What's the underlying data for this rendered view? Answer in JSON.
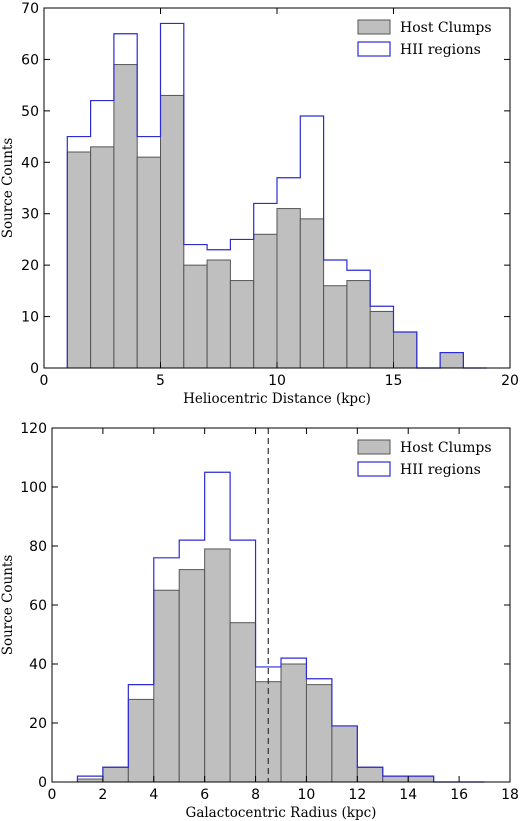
{
  "chart_data": [
    {
      "type": "bar",
      "subtype": "histogram",
      "xlabel": "Heliocentric Distance (kpc)",
      "ylabel": "Source Counts",
      "xlim": [
        0,
        20
      ],
      "ylim": [
        0,
        70
      ],
      "xticks": [
        "0",
        "5",
        "10",
        "15",
        "20"
      ],
      "yticks": [
        "0",
        "10",
        "20",
        "30",
        "40",
        "50",
        "60",
        "70"
      ],
      "bin_edges": [
        1,
        2,
        3,
        4,
        5,
        6,
        7,
        8,
        9,
        10,
        11,
        12,
        13,
        14,
        15,
        16,
        17,
        18,
        19
      ],
      "legend_position": "top-right",
      "series": [
        {
          "name": "Host Clumps",
          "style": "filled",
          "color": "#bfbfbf",
          "edge_color": "#555555",
          "values": [
            42,
            43,
            59,
            41,
            53,
            20,
            21,
            17,
            26,
            31,
            29,
            16,
            17,
            11,
            7,
            0,
            3,
            0
          ]
        },
        {
          "name": "HII regions",
          "style": "step",
          "color": "#2b2bd6",
          "values": [
            45,
            52,
            65,
            45,
            67,
            24,
            23,
            25,
            32,
            37,
            49,
            21,
            19,
            12,
            7,
            0,
            3,
            0
          ]
        }
      ]
    },
    {
      "type": "bar",
      "subtype": "histogram",
      "xlabel": "Galactocentric Radius (kpc)",
      "ylabel": "Source Counts",
      "xlim": [
        0,
        18
      ],
      "ylim": [
        0,
        120
      ],
      "xticks": [
        "0",
        "2",
        "4",
        "6",
        "8",
        "10",
        "12",
        "14",
        "16",
        "18"
      ],
      "yticks": [
        "0",
        "20",
        "40",
        "60",
        "80",
        "100",
        "120"
      ],
      "bin_edges": [
        1,
        2,
        3,
        4,
        5,
        6,
        7,
        8,
        9,
        10,
        11,
        12,
        13,
        14,
        15,
        16,
        17
      ],
      "vline": {
        "x": 8.5,
        "style": "dashed",
        "color": "#333333"
      },
      "legend_position": "top-right",
      "series": [
        {
          "name": "Host Clumps",
          "style": "filled",
          "color": "#bfbfbf",
          "edge_color": "#555555",
          "values": [
            1,
            5,
            28,
            65,
            72,
            79,
            54,
            34,
            40,
            33,
            19,
            5,
            2,
            2,
            0,
            0
          ]
        },
        {
          "name": "HII regions",
          "style": "step",
          "color": "#2b2bd6",
          "values": [
            2,
            5,
            33,
            76,
            82,
            105,
            82,
            39,
            42,
            35,
            19,
            5,
            2,
            2,
            0,
            0
          ]
        }
      ]
    }
  ]
}
